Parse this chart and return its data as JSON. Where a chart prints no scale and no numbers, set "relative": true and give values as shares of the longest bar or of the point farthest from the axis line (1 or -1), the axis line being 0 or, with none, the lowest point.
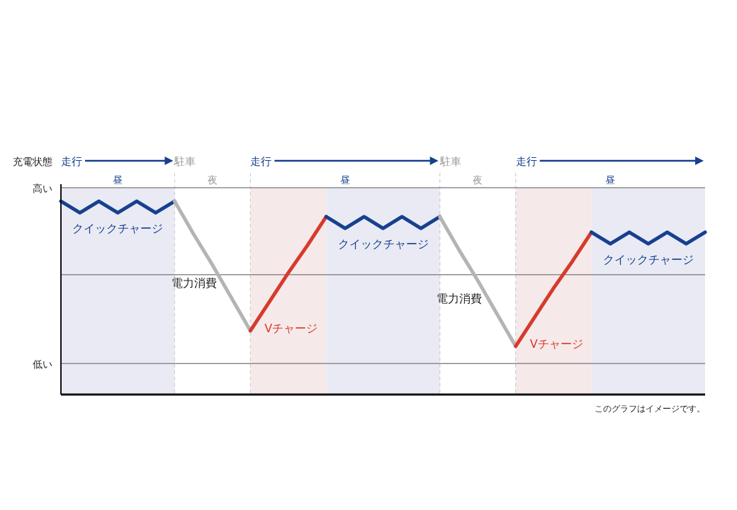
{
  "chart_data": {
    "type": "line",
    "relative": true,
    "ylabel": "充電状態",
    "marker": "none",
    "line_style": "solid",
    "categories": [
      null,
      null,
      null,
      null,
      null,
      null,
      null,
      null,
      null,
      null,
      null,
      null,
      null,
      null,
      null,
      null,
      null,
      null,
      null,
      null,
      null,
      null,
      null,
      null,
      null,
      null,
      null,
      null,
      null,
      null,
      null,
      null,
      null,
      null,
      null
    ],
    "series": [
      {
        "name": "クイックチャージ",
        "color": "#17408f",
        "values": [
          1,
          0.94,
          1,
          0.94,
          1,
          0.94,
          1,
          null,
          null,
          null,
          null,
          null,
          null,
          null,
          null,
          null,
          null,
          null,
          null,
          null,
          null,
          null,
          null,
          null,
          null,
          null,
          null,
          null,
          null,
          null,
          null,
          null,
          null,
          null,
          null
        ]
      },
      {
        "name": "電力消費",
        "color": "#b4b4b4",
        "values": [
          null,
          null,
          null,
          null,
          null,
          null,
          1,
          0.83,
          0.67,
          0.5,
          0.33,
          null,
          null,
          null,
          null,
          null,
          null,
          null,
          null,
          null,
          null,
          null,
          null,
          null,
          null,
          null,
          null,
          null,
          null,
          null,
          null,
          null,
          null,
          null,
          null
        ]
      },
      {
        "name": "Vチャージ",
        "color": "#d63a2c",
        "values": [
          null,
          null,
          null,
          null,
          null,
          null,
          null,
          null,
          null,
          null,
          0.33,
          0.48,
          0.63,
          0.77,
          0.92,
          null,
          null,
          null,
          null,
          null,
          null,
          null,
          null,
          null,
          null,
          null,
          null,
          null,
          null,
          null,
          null,
          null,
          null,
          null,
          null
        ]
      },
      {
        "name": "クイックチャージ",
        "color": "#17408f",
        "values": [
          null,
          null,
          null,
          null,
          null,
          null,
          null,
          null,
          null,
          null,
          null,
          null,
          null,
          null,
          0.92,
          0.86,
          0.92,
          0.86,
          0.92,
          0.86,
          0.92,
          null,
          null,
          null,
          null,
          null,
          null,
          null,
          null,
          null,
          null,
          null,
          null,
          null,
          null
        ]
      },
      {
        "name": "電力消費",
        "color": "#b4b4b4",
        "values": [
          null,
          null,
          null,
          null,
          null,
          null,
          null,
          null,
          null,
          null,
          null,
          null,
          null,
          null,
          null,
          null,
          null,
          null,
          null,
          null,
          0.92,
          0.75,
          0.59,
          0.42,
          0.25,
          null,
          null,
          null,
          null,
          null,
          null,
          null,
          null,
          null,
          null
        ]
      },
      {
        "name": "Vチャージ",
        "color": "#d63a2c",
        "values": [
          null,
          null,
          null,
          null,
          null,
          null,
          null,
          null,
          null,
          null,
          null,
          null,
          null,
          null,
          null,
          null,
          null,
          null,
          null,
          null,
          null,
          null,
          null,
          null,
          0.25,
          0.4,
          0.55,
          0.69,
          0.84,
          null,
          null,
          null,
          null,
          null,
          null
        ]
      },
      {
        "name": "クイックチャージ",
        "color": "#17408f",
        "values": [
          null,
          null,
          null,
          null,
          null,
          null,
          null,
          null,
          null,
          null,
          null,
          null,
          null,
          null,
          null,
          null,
          null,
          null,
          null,
          null,
          null,
          null,
          null,
          null,
          null,
          null,
          null,
          null,
          0.84,
          0.78,
          0.84,
          0.78,
          0.84,
          0.78,
          0.84
        ]
      }
    ],
    "ref_lines": [
      {
        "axis": "y",
        "value": 1.07,
        "label": "高い",
        "color": "#8c8c8c"
      },
      {
        "axis": "y",
        "value": 0.62,
        "label": null,
        "color": "#8c8c8c"
      },
      {
        "axis": "y",
        "value": 0.16,
        "label": "低い",
        "color": "#8c8c8c"
      }
    ],
    "grid": true,
    "annotations": [
      "走行",
      "駐車",
      "走行",
      "駐車",
      "走行",
      "昼",
      "夜",
      "昼",
      "夜",
      "昼",
      "このグラフはイメージです。"
    ]
  }
}
